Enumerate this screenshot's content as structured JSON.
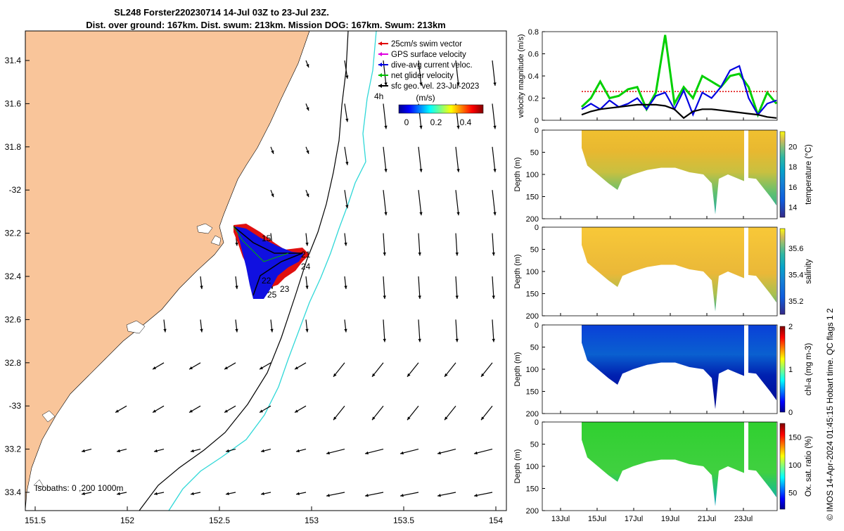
{
  "title": {
    "line1": "SL248 Forster220230714 14-Jul 03Z to 23-Jul 23Z.",
    "line2": "Dist. over ground: 167km. Dist. swum: 213km. Mission DOG: 167km. Swum: 213km"
  },
  "map": {
    "lon_ticks": [
      "151.5",
      "152",
      "152.5",
      "153",
      "153.5",
      "154"
    ],
    "lat_ticks": [
      "31.4",
      "31.6",
      "31.8",
      "-32",
      "32.2",
      "32.4",
      "32.6",
      "32.8",
      "-33",
      "33.2",
      "33.4"
    ],
    "isobaths_label": "Isobaths: 0 ,200 1000m",
    "legend": [
      {
        "label": "25cm/s swim vector",
        "color": "#e00000"
      },
      {
        "label": "GPS surface velocity",
        "color": "#e000e0"
      },
      {
        "label": "dive-avg current veloc.",
        "color": "#0000e0"
      },
      {
        "label": "net glider velocity",
        "color": "#00c000"
      },
      {
        "label": "sfc geo. vel. 23-Jul-2023",
        "color": "#000000"
      }
    ],
    "extra_label": "4h",
    "colorbar": {
      "title": "(m/s)",
      "ticks": [
        "0",
        "0.2",
        "0.4"
      ]
    },
    "track_day_labels": [
      "15",
      "21",
      "24",
      "22",
      "23",
      "25"
    ],
    "land_color": "#f9c59a"
  },
  "chart_data": [
    {
      "type": "line",
      "ylabel": "velocity magnitude (m/s)",
      "ylim": [
        0,
        0.8
      ],
      "yticks": [
        "0",
        "0.2",
        "0.4",
        "0.6",
        "0.8"
      ],
      "series": [
        {
          "name": "swim speed",
          "color": "#e00000",
          "values": [
            0.26,
            0.26,
            0.26,
            0.26,
            0.26,
            0.26,
            0.26,
            0.26,
            0.26,
            0.26
          ]
        },
        {
          "name": "net glider velocity",
          "color": "#00d000",
          "values": [
            0.12,
            0.2,
            0.35,
            0.2,
            0.22,
            0.28,
            0.3,
            0.1,
            0.25,
            0.77,
            0.15,
            0.3,
            0.2,
            0.4,
            0.35,
            0.3,
            0.4,
            0.42,
            0.3,
            0.05,
            0.25,
            0.15
          ]
        },
        {
          "name": "dive-avg current",
          "color": "#0000e0",
          "values": [
            0.1,
            0.15,
            0.1,
            0.18,
            0.12,
            0.15,
            0.2,
            0.1,
            0.22,
            0.25,
            0.1,
            0.27,
            0.05,
            0.25,
            0.2,
            0.3,
            0.45,
            0.49,
            0.2,
            0.05,
            0.15,
            0.18
          ]
        },
        {
          "name": "sfc geo velocity",
          "color": "#000000",
          "values": [
            0.05,
            0.08,
            0.1,
            0.11,
            0.12,
            0.13,
            0.14,
            0.14,
            0.14,
            0.13,
            0.1,
            0.02,
            0.08,
            0.1,
            0.1,
            0.09,
            0.08,
            0.07,
            0.06,
            0.05,
            0.03,
            0.02
          ]
        }
      ]
    },
    {
      "type": "heatmap",
      "ylabel": "Depth (m)",
      "clabel": "temperature (°C)",
      "ylim": [
        200,
        0
      ],
      "yticks": [
        "0",
        "50",
        "100",
        "150",
        "200"
      ],
      "cticks": [
        "14",
        "16",
        "18",
        "20"
      ],
      "crange": [
        13,
        21.5
      ],
      "colormap": "parula"
    },
    {
      "type": "heatmap",
      "ylabel": "Depth (m)",
      "clabel": "salinity",
      "ylim": [
        200,
        0
      ],
      "yticks": [
        "0",
        "50",
        "100",
        "150",
        "200"
      ],
      "cticks": [
        "35.2",
        "35.4",
        "35.6"
      ],
      "crange": [
        35.1,
        35.75
      ],
      "colormap": "parula"
    },
    {
      "type": "heatmap",
      "ylabel": "Depth (m)",
      "clabel": "chl-a (mg m-3)",
      "ylim": [
        200,
        0
      ],
      "yticks": [
        "0",
        "50",
        "100",
        "150",
        "200"
      ],
      "cticks": [
        "0",
        "1",
        "2"
      ],
      "crange": [
        0,
        2
      ],
      "colormap": "jet"
    },
    {
      "type": "heatmap",
      "ylabel": "Depth (m)",
      "clabel": "Ox. sat. ratio (%)",
      "ylim": [
        200,
        0
      ],
      "yticks": [
        "0",
        "50",
        "100",
        "150",
        "200"
      ],
      "cticks": [
        "50",
        "100",
        "150"
      ],
      "crange": [
        20,
        175
      ],
      "colormap": "jet"
    }
  ],
  "time_ticks": [
    "13Jul",
    "15Jul",
    "17Jul",
    "19Jul",
    "21Jul",
    "23Jul"
  ],
  "footer": "© IMOS 14-Apr-2024 01:45:15 Hobart time. QC flags 1  2"
}
